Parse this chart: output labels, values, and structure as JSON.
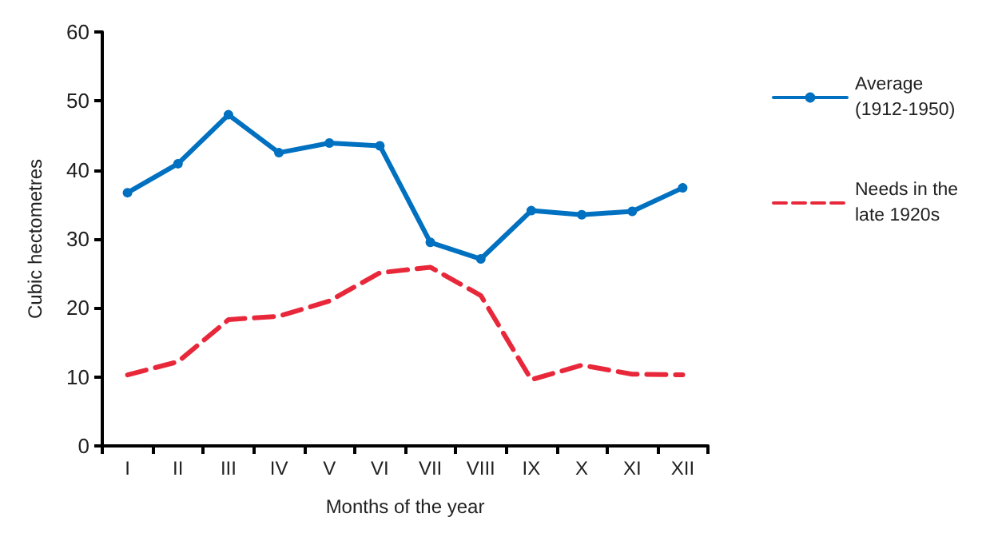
{
  "chart_data": {
    "type": "line",
    "xlabel": "Months of the year",
    "ylabel": "Cubic hectometres",
    "categories": [
      "I",
      "II",
      "III",
      "IV",
      "V",
      "VI",
      "VII",
      "VIII",
      "IX",
      "X",
      "XI",
      "XII"
    ],
    "series": [
      {
        "name": "Average (1912-1950)",
        "color": "#0070c0",
        "marker": "circle",
        "line_style": "solid",
        "values": [
          36.7,
          40.9,
          48,
          42.5,
          43.9,
          43.5,
          29.5,
          27.1,
          34.1,
          33.5,
          34,
          37.4
        ]
      },
      {
        "name": "Needs in the late 1920s",
        "color": "#e8283a",
        "marker": "none",
        "line_style": "dashed",
        "values": [
          10.3,
          12.2,
          18.3,
          18.8,
          21,
          25.1,
          25.9,
          21.8,
          9.6,
          11.7,
          10.4,
          10.3
        ]
      }
    ],
    "ylim": [
      0,
      60
    ],
    "yticks": [
      0,
      10,
      20,
      30,
      40,
      50,
      60
    ],
    "grid": false,
    "legend": "right"
  }
}
